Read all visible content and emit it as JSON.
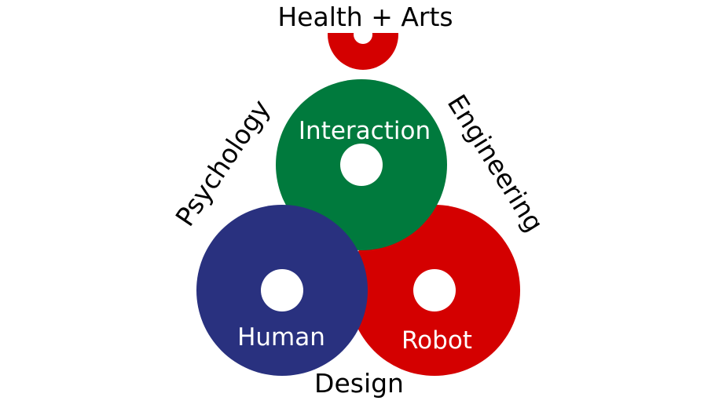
{
  "top_label": "Health + Arts",
  "left_label": "Psychology",
  "right_label": "Engineering",
  "bottom_label": "Design",
  "rings": {
    "interaction": {
      "label": "Interaction",
      "color": "#007A3D"
    },
    "human": {
      "label": "Human",
      "color": "#29317F"
    },
    "robot": {
      "label": "Robot",
      "color": "#D40000"
    },
    "top": {
      "color": "#D40000"
    }
  },
  "colors": {
    "background": "#FFFFFF",
    "text": "#000000",
    "ring_text": "#FFFFFF"
  }
}
